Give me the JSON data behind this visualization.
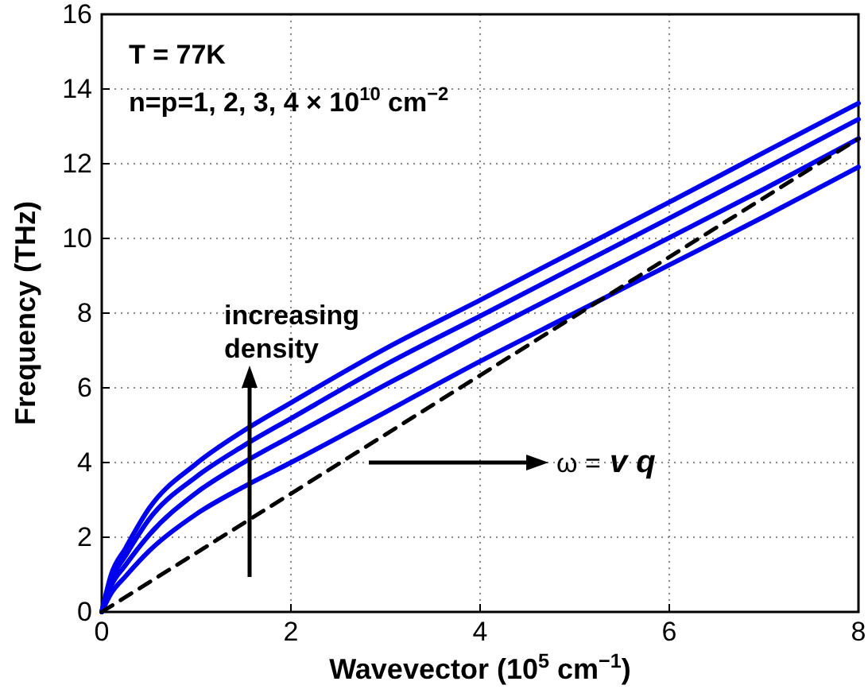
{
  "chart_data": {
    "type": "line",
    "xlabel": "Wavevector (10$^{5}$ cm$^{−1}$)",
    "ylabel": "Frequency (THz)",
    "xlim": [
      0,
      8
    ],
    "xticks": [
      0,
      2,
      4,
      6,
      8
    ],
    "ylim": [
      0,
      16
    ],
    "yticks": [
      0,
      2,
      4,
      6,
      8,
      10,
      12,
      14,
      16
    ],
    "grid": true,
    "x": [
      0,
      0.1,
      0.25,
      0.5,
      1,
      1.5,
      2,
      3,
      4,
      5,
      6,
      7,
      8
    ],
    "series": [
      {
        "color": "#0000ee",
        "line_style": "solid",
        "values": [
          0,
          1.0,
          1.7,
          2.77,
          3.97,
          4.85,
          5.6,
          7.05,
          8.35,
          9.66,
          10.97,
          12.3,
          13.62
        ]
      },
      {
        "color": "#0000ee",
        "line_style": "solid",
        "values": [
          0,
          0.85,
          1.5,
          2.48,
          3.62,
          4.45,
          5.18,
          6.62,
          7.92,
          9.23,
          10.54,
          11.86,
          13.19
        ]
      },
      {
        "color": "#0000ee",
        "line_style": "solid",
        "values": [
          0,
          0.7,
          1.25,
          2.06,
          3.19,
          4.0,
          4.7,
          6.08,
          7.42,
          8.72,
          10.02,
          11.32,
          12.67
        ]
      },
      {
        "color": "#0000ee",
        "line_style": "solid",
        "values": [
          0,
          0.5,
          0.95,
          1.63,
          2.62,
          3.35,
          4.0,
          5.35,
          6.71,
          8.0,
          9.29,
          10.58,
          11.91
        ]
      },
      {
        "type": "line",
        "color": "#000000",
        "line_style": "dashed",
        "x": [
          0,
          8
        ],
        "values": [
          0,
          12.67
        ]
      }
    ],
    "annotations": [
      "T = 77K",
      "n=p=1, 2, 3, 4 × 10$^{10}$ cm$^{−2}$",
      "increasing density",
      "ω = v q"
    ]
  }
}
